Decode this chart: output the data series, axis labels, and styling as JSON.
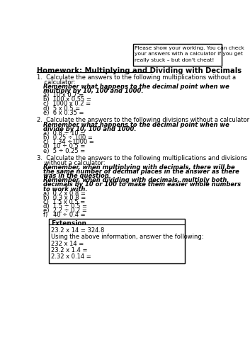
{
  "title": "Homework: Multiplying and Dividing with Decimals",
  "note_lines": [
    "Please show your working. You can check",
    "your answers with a calculator if you get",
    "really stuck – but don't cheat!"
  ],
  "section1_intro_lines": [
    "1.  Calculate the answers to the following multiplications without a",
    "    calculator:"
  ],
  "section1_remember_lines": [
    "Remember what happens to the decimal point when we",
    "multiply by 10, 100 and 1000."
  ],
  "section1_items": [
    "a)  10 x 0.7 =",
    "b)  100 x 0.55 =",
    "c)  1000 x 0.2 =",
    "d)  5 x 0.5 =",
    "e)  6 x 0.35 ="
  ],
  "section2_intro_lines": [
    "2.  Calculate the answers to the following divisions without a calculator:"
  ],
  "section2_remember_lines": [
    "Remember what happens to the decimal point when we",
    "divide by 10, 100 and 1000."
  ],
  "section2_items": [
    "a)  0.8 ÷ 10 =",
    "b)  0.25 ÷ 100 =",
    "c)  1.34 ÷1000 =",
    "d)  10 ÷ 0.5 =",
    "e)  5 ÷ 0.25 ="
  ],
  "section3_intro_lines": [
    "3.  Calculate the answers to the following multiplications and divisions",
    "    without a calculator:"
  ],
  "section3_remember1_lines": [
    "Remember, when multiplying with decimals, there will be",
    "the same number of decimal places in the answer as there",
    "was in the question."
  ],
  "section3_remember2_lines": [
    "Remember, when dividing with decimals, multiply both",
    "decimals by 10 or 100 to make them easier whole numbers",
    "to work with."
  ],
  "section3_items": [
    "a)  0.2 x 0.8 =",
    "b)  0.3 x 0.8 =",
    "c)  1.5 x 0.5 =",
    "d)  1.5 ÷ 0.5 =",
    "e)  2.2 ÷ 0.2 =",
    "f)   40 ÷ 0.4 ="
  ],
  "extension_title": "Extension",
  "extension_line1": "23.2 x 14 = 324.8",
  "extension_line2": "Using the above information, answer the following:",
  "extension_items": [
    "232 x 14 =",
    "23.2 x 1.4 =",
    "2.32 x 0.14 ="
  ],
  "bg_color": "#ffffff",
  "text_color": "#000000"
}
